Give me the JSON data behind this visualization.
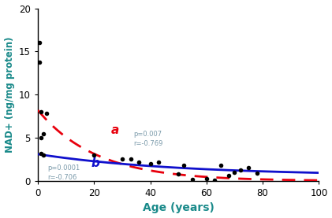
{
  "scatter_x": [
    0.5,
    0.5,
    1,
    1,
    1,
    2,
    2,
    3,
    20,
    30,
    33,
    36,
    40,
    43,
    50,
    52,
    55,
    60,
    63,
    65,
    68,
    70,
    72,
    75,
    78
  ],
  "scatter_y": [
    16,
    13.8,
    8,
    5,
    3.2,
    5.5,
    3,
    7.8,
    3.0,
    2.5,
    2.5,
    2.2,
    2.0,
    2.2,
    0.8,
    1.8,
    0.2,
    0.3,
    0.1,
    1.8,
    0.6,
    1.0,
    1.3,
    1.5,
    0.9
  ],
  "curve_a_color": "#e8000d",
  "curve_b_color": "#1010cc",
  "curve_a_A": 8.2,
  "curve_a_k": 0.048,
  "curve_b_A": 2.5,
  "curve_b_k": 0.02,
  "curve_b_c": 0.6,
  "annotation_a": "p=0.007\nr=-0.769",
  "annotation_b": "p=0.0001\nr=-0.706",
  "annotation_color": "#7a9aaa",
  "label_color": "#1a8a8a",
  "xlabel": "Age (years)",
  "ylabel": "NAD+ (ng/mg protein)",
  "xlim": [
    0,
    100
  ],
  "ylim": [
    0,
    20
  ],
  "xticks": [
    0,
    20,
    40,
    60,
    80,
    100
  ],
  "yticks": [
    0,
    5,
    10,
    15,
    20
  ],
  "figsize": [
    4.21,
    2.77
  ],
  "dpi": 100
}
